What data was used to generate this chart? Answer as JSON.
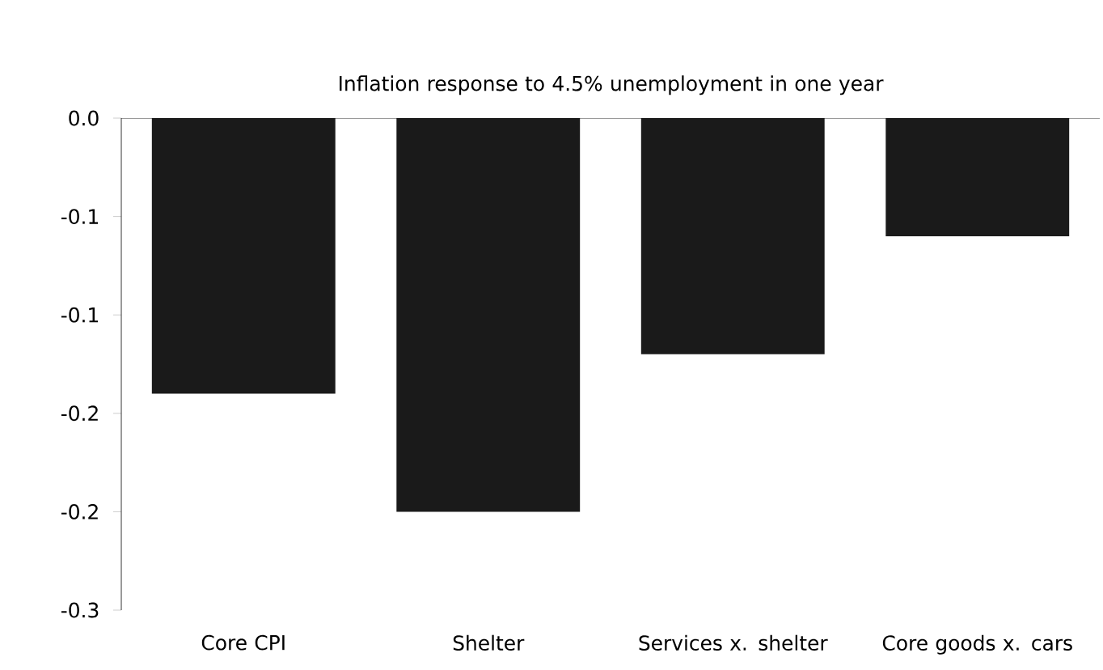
{
  "chart_data": {
    "type": "bar",
    "title": "Inflation response to 4.5% unemployment in one year",
    "categories": [
      "Core CPI",
      "Shelter",
      "Services x. shelter",
      "Core goods x. cars"
    ],
    "values": [
      -0.14,
      -0.2,
      -0.12,
      -0.06
    ],
    "color": "#1a1a1a",
    "ylim": [
      -0.25,
      0
    ],
    "yticks": [
      {
        "value": 0,
        "label": "0.0"
      },
      {
        "value": -0.05,
        "label": "-0.1"
      },
      {
        "value": -0.1,
        "label": "-0.1"
      },
      {
        "value": -0.15,
        "label": "-0.2"
      },
      {
        "value": -0.2,
        "label": "-0.2"
      },
      {
        "value": -0.25,
        "label": "-0.3"
      }
    ],
    "grid": false
  }
}
